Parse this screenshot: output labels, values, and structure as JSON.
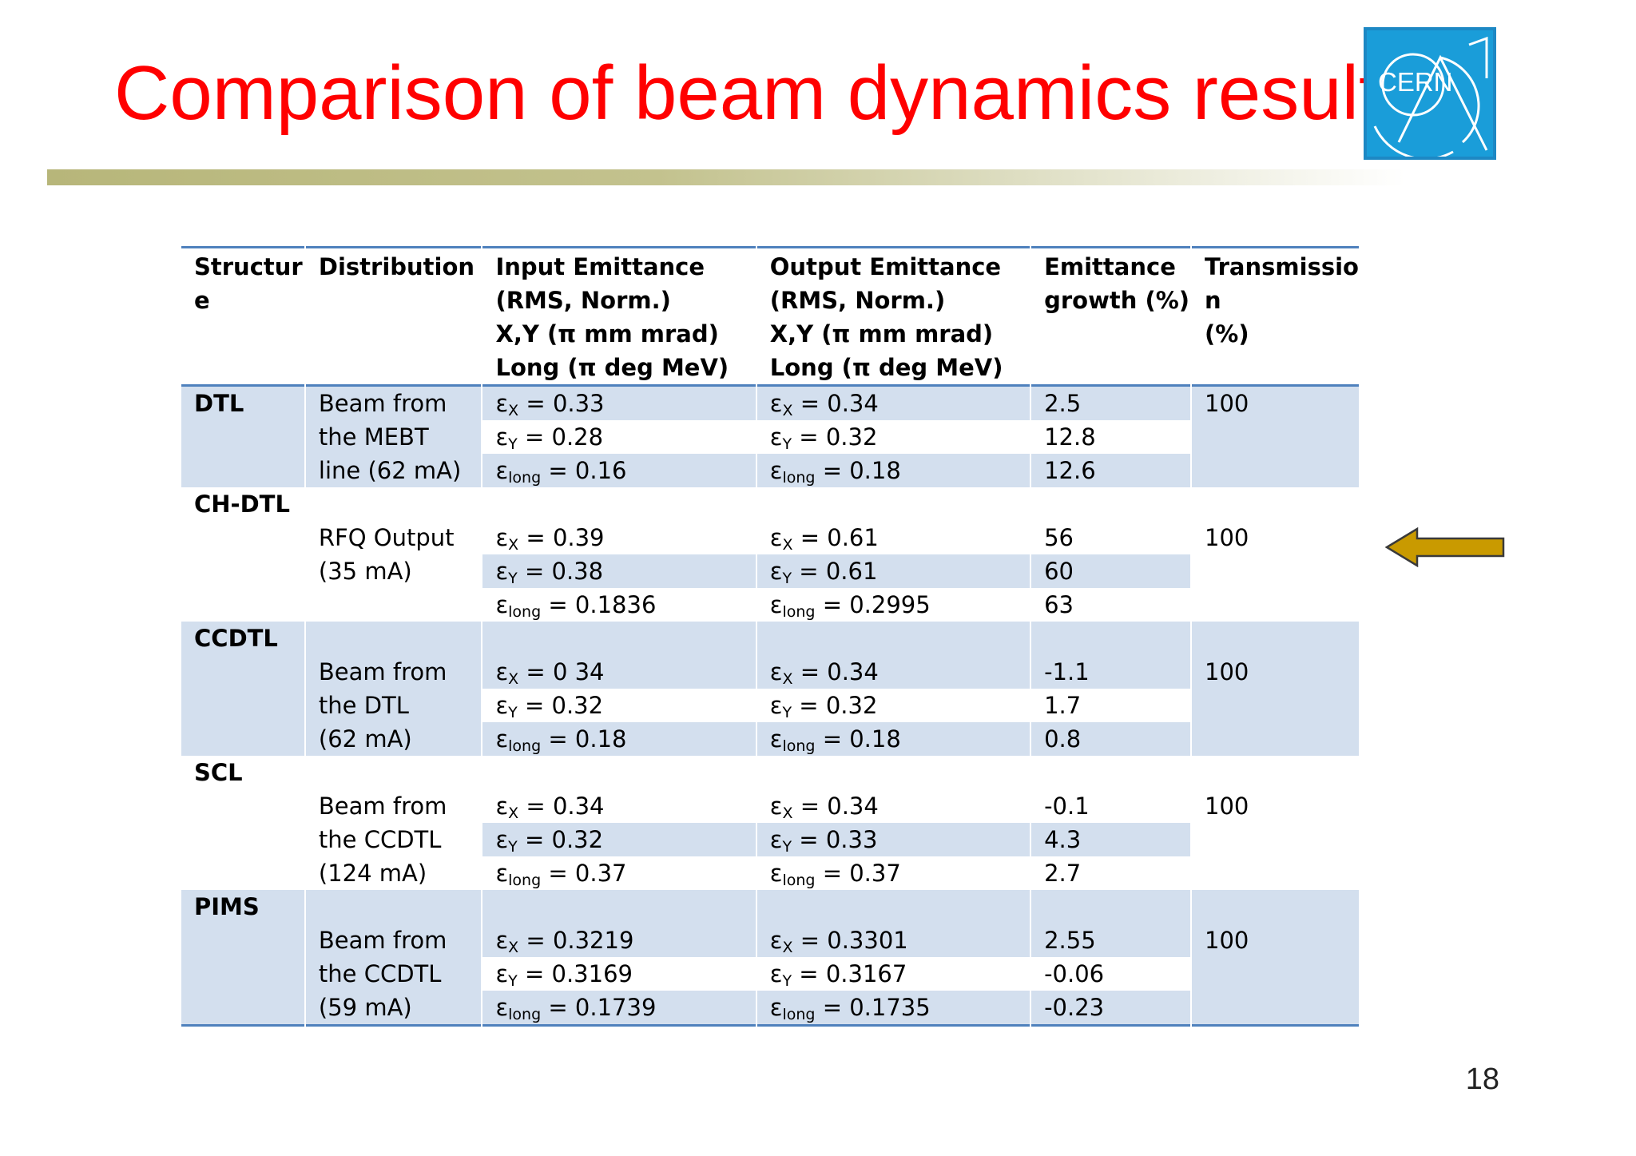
{
  "slide": {
    "title": "Comparison of beam dynamics results",
    "logo_text": "CERN",
    "page_number": "18"
  },
  "table": {
    "headers": {
      "structure": [
        "Structur",
        "e"
      ],
      "distribution": "Distribution",
      "input": [
        "Input Emittance",
        "(RMS, Norm.)",
        "X,Y (π mm mrad)",
        "Long (π deg MeV)"
      ],
      "output": [
        "Output Emittance",
        "(RMS, Norm.)",
        "X,Y (π mm mrad)",
        "Long (π deg MeV)"
      ],
      "growth": [
        "Emittance",
        "growth (%)"
      ],
      "transmission": [
        "Transmissio",
        "n",
        "(%)"
      ]
    },
    "symbols": {
      "eps": "ε",
      "x": "X",
      "y": "Y",
      "long": "long",
      "eq": " = "
    },
    "groups": [
      {
        "structure": "DTL",
        "distribution": [
          "Beam from",
          "the MEBT",
          "line (62 mA)"
        ],
        "input": [
          "0.33",
          "0.28",
          "0.16"
        ],
        "output": [
          "0.34",
          "0.32",
          "0.18"
        ],
        "growth": [
          "2.5",
          "12.8",
          "12.6"
        ],
        "transmission": "100"
      },
      {
        "structure": "CH-DTL",
        "distribution": [
          "RFQ Output",
          "(35 mA)",
          ""
        ],
        "input": [
          "0.39",
          "0.38",
          "0.1836"
        ],
        "output": [
          "0.61",
          "0.61",
          "0.2995"
        ],
        "growth": [
          "56",
          "60",
          "63"
        ],
        "transmission": "100"
      },
      {
        "structure": "CCDTL",
        "distribution": [
          "Beam from",
          "the DTL",
          "(62 mA)"
        ],
        "input": [
          "0 34",
          "0.32",
          "0.18"
        ],
        "output": [
          "0.34",
          "0.32",
          "0.18"
        ],
        "growth": [
          "-1.1",
          "1.7",
          "0.8"
        ],
        "transmission": "100"
      },
      {
        "structure": "SCL",
        "distribution": [
          "Beam from",
          "the CCDTL",
          "(124 mA)"
        ],
        "input": [
          "0.34",
          "0.32",
          "0.37"
        ],
        "output": [
          "0.34",
          "0.33",
          "0.37"
        ],
        "growth": [
          "-0.1",
          "4.3",
          "2.7"
        ],
        "transmission": "100"
      },
      {
        "structure": "PIMS",
        "distribution": [
          "Beam from",
          "the CCDTL",
          "(59 mA)"
        ],
        "input": [
          "0.3219",
          "0.3169",
          "0.1739"
        ],
        "output": [
          "0.3301",
          "0.3167",
          "0.1735"
        ],
        "growth": [
          "2.55",
          "-0.06",
          "-0.23"
        ],
        "transmission": "100"
      }
    ]
  },
  "annotation": {
    "arrow_direction": "left",
    "arrow_color": "#c99a00",
    "highlighted_row": "CH-DTL"
  }
}
